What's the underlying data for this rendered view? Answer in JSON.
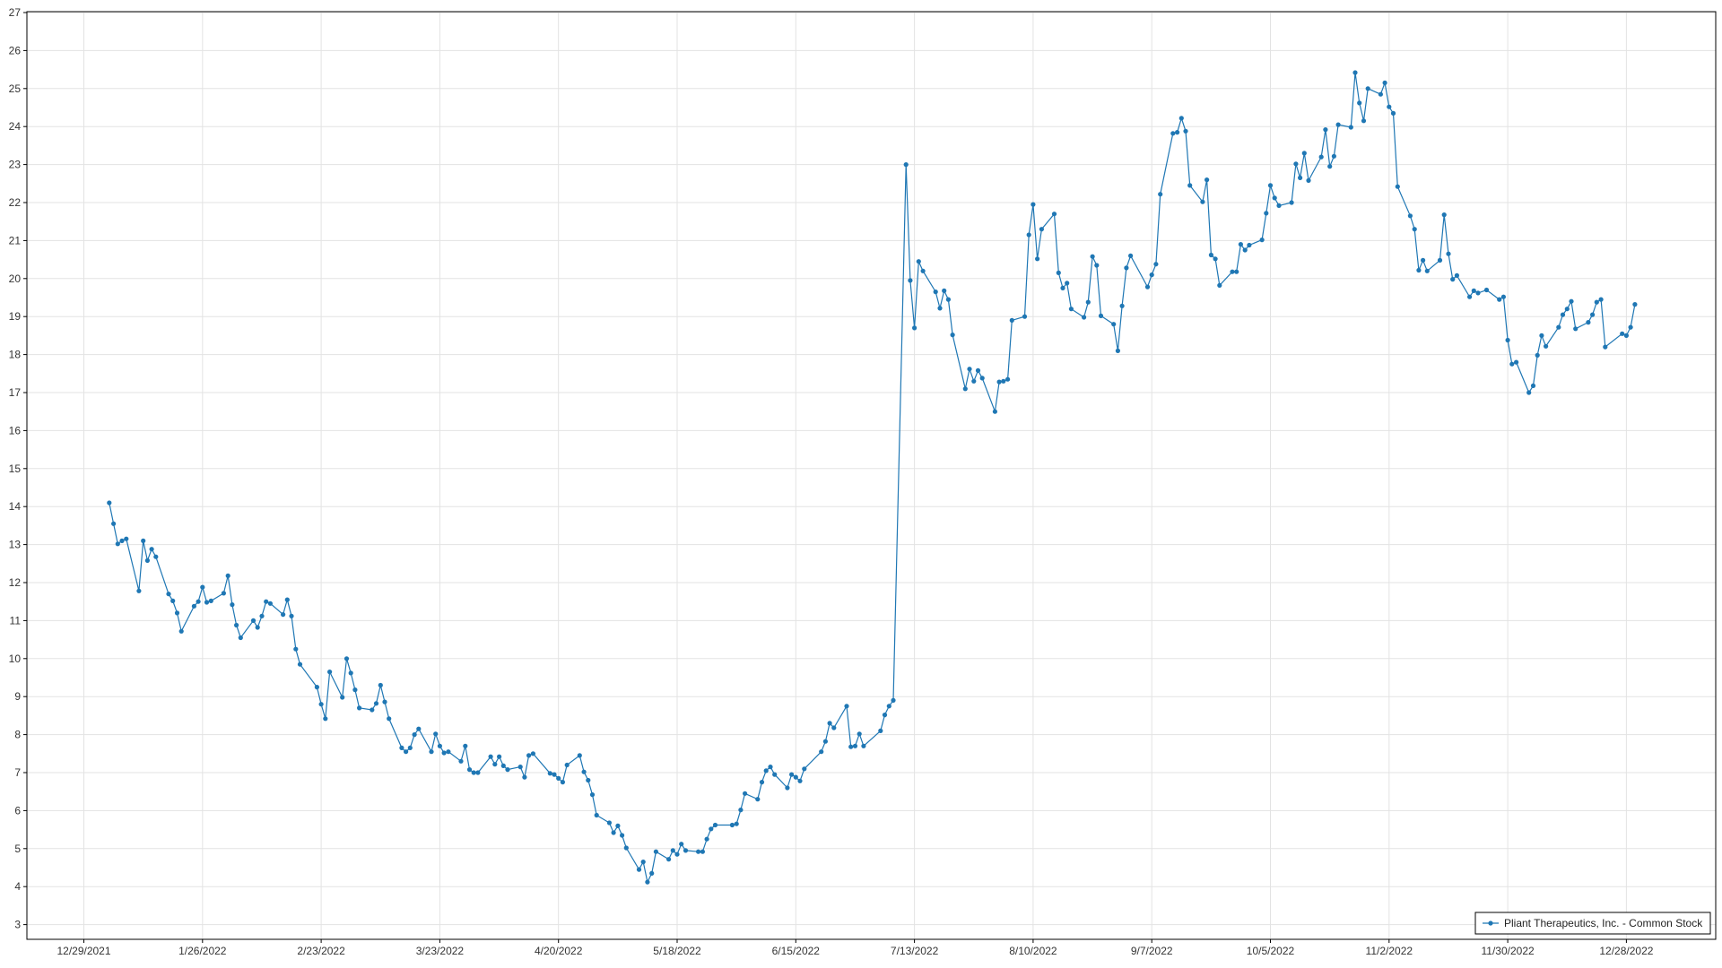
{
  "chart_data": {
    "type": "line",
    "title": "",
    "xlabel": "",
    "ylabel": "",
    "ylim": [
      3,
      27
    ],
    "xlim": [
      "2021-12-29",
      "2023-01-11"
    ],
    "yticks": [
      3,
      4,
      5,
      6,
      7,
      8,
      9,
      10,
      11,
      12,
      13,
      14,
      15,
      16,
      17,
      18,
      19,
      20,
      21,
      22,
      23,
      24,
      25,
      26,
      27
    ],
    "xticks": [
      {
        "date": "2021-12-29",
        "label": "12/29/2021"
      },
      {
        "date": "2022-01-26",
        "label": "1/26/2022"
      },
      {
        "date": "2022-02-23",
        "label": "2/23/2022"
      },
      {
        "date": "2022-03-23",
        "label": "3/23/2022"
      },
      {
        "date": "2022-04-20",
        "label": "4/20/2022"
      },
      {
        "date": "2022-05-18",
        "label": "5/18/2022"
      },
      {
        "date": "2022-06-15",
        "label": "6/15/2022"
      },
      {
        "date": "2022-07-13",
        "label": "7/13/2022"
      },
      {
        "date": "2022-08-10",
        "label": "8/10/2022"
      },
      {
        "date": "2022-09-07",
        "label": "9/7/2022"
      },
      {
        "date": "2022-10-05",
        "label": "10/5/2022"
      },
      {
        "date": "2022-11-02",
        "label": "11/2/2022"
      },
      {
        "date": "2022-11-30",
        "label": "11/30/2022"
      },
      {
        "date": "2022-12-28",
        "label": "12/28/2022"
      }
    ],
    "grid": true,
    "legend_position": "bottom-right",
    "colors": {
      "series": "#1f77b4",
      "grid": "#e3e3e3",
      "axis": "#000000"
    },
    "series": [
      {
        "name": "Pliant Therapeutics, Inc. - Common Stock",
        "points": [
          [
            "2022-01-04",
            14.1
          ],
          [
            "2022-01-05",
            13.55
          ],
          [
            "2022-01-06",
            13.02
          ],
          [
            "2022-01-07",
            13.1
          ],
          [
            "2022-01-08",
            13.15
          ],
          [
            "2022-01-11",
            11.78
          ],
          [
            "2022-01-12",
            13.1
          ],
          [
            "2022-01-13",
            12.58
          ],
          [
            "2022-01-14",
            12.88
          ],
          [
            "2022-01-15",
            12.68
          ],
          [
            "2022-01-18",
            11.7
          ],
          [
            "2022-01-19",
            11.52
          ],
          [
            "2022-01-20",
            11.2
          ],
          [
            "2022-01-21",
            10.72
          ],
          [
            "2022-01-24",
            11.38
          ],
          [
            "2022-01-25",
            11.5
          ],
          [
            "2022-01-26",
            11.88
          ],
          [
            "2022-01-27",
            11.48
          ],
          [
            "2022-01-28",
            11.52
          ],
          [
            "2022-01-31",
            11.72
          ],
          [
            "2022-02-01",
            12.18
          ],
          [
            "2022-02-02",
            11.42
          ],
          [
            "2022-02-03",
            10.88
          ],
          [
            "2022-02-04",
            10.55
          ],
          [
            "2022-02-07",
            11.0
          ],
          [
            "2022-02-08",
            10.82
          ],
          [
            "2022-02-09",
            11.12
          ],
          [
            "2022-02-10",
            11.5
          ],
          [
            "2022-02-11",
            11.45
          ],
          [
            "2022-02-14",
            11.16
          ],
          [
            "2022-02-15",
            11.55
          ],
          [
            "2022-02-16",
            11.12
          ],
          [
            "2022-02-17",
            10.25
          ],
          [
            "2022-02-18",
            9.85
          ],
          [
            "2022-02-22",
            9.25
          ],
          [
            "2022-02-23",
            8.8
          ],
          [
            "2022-02-24",
            8.42
          ],
          [
            "2022-02-25",
            9.65
          ],
          [
            "2022-02-28",
            8.98
          ],
          [
            "2022-03-01",
            10.0
          ],
          [
            "2022-03-02",
            9.62
          ],
          [
            "2022-03-03",
            9.18
          ],
          [
            "2022-03-04",
            8.7
          ],
          [
            "2022-03-07",
            8.65
          ],
          [
            "2022-03-08",
            8.82
          ],
          [
            "2022-03-09",
            9.3
          ],
          [
            "2022-03-10",
            8.86
          ],
          [
            "2022-03-11",
            8.42
          ],
          [
            "2022-03-14",
            7.65
          ],
          [
            "2022-03-15",
            7.55
          ],
          [
            "2022-03-16",
            7.65
          ],
          [
            "2022-03-17",
            8.0
          ],
          [
            "2022-03-18",
            8.15
          ],
          [
            "2022-03-21",
            7.55
          ],
          [
            "2022-03-22",
            8.02
          ],
          [
            "2022-03-23",
            7.7
          ],
          [
            "2022-03-24",
            7.52
          ],
          [
            "2022-03-25",
            7.55
          ],
          [
            "2022-03-28",
            7.3
          ],
          [
            "2022-03-29",
            7.7
          ],
          [
            "2022-03-30",
            7.08
          ],
          [
            "2022-03-31",
            7.0
          ],
          [
            "2022-04-01",
            7.0
          ],
          [
            "2022-04-04",
            7.42
          ],
          [
            "2022-04-05",
            7.22
          ],
          [
            "2022-04-06",
            7.42
          ],
          [
            "2022-04-07",
            7.18
          ],
          [
            "2022-04-08",
            7.08
          ],
          [
            "2022-04-11",
            7.15
          ],
          [
            "2022-04-12",
            6.88
          ],
          [
            "2022-04-13",
            7.45
          ],
          [
            "2022-04-14",
            7.5
          ],
          [
            "2022-04-18",
            6.98
          ],
          [
            "2022-04-19",
            6.95
          ],
          [
            "2022-04-20",
            6.85
          ],
          [
            "2022-04-21",
            6.75
          ],
          [
            "2022-04-22",
            7.2
          ],
          [
            "2022-04-25",
            7.45
          ],
          [
            "2022-04-26",
            7.02
          ],
          [
            "2022-04-27",
            6.8
          ],
          [
            "2022-04-28",
            6.42
          ],
          [
            "2022-04-29",
            5.88
          ],
          [
            "2022-05-02",
            5.68
          ],
          [
            "2022-05-03",
            5.42
          ],
          [
            "2022-05-04",
            5.6
          ],
          [
            "2022-05-05",
            5.35
          ],
          [
            "2022-05-06",
            5.02
          ],
          [
            "2022-05-09",
            4.45
          ],
          [
            "2022-05-10",
            4.65
          ],
          [
            "2022-05-11",
            4.12
          ],
          [
            "2022-05-12",
            4.35
          ],
          [
            "2022-05-13",
            4.92
          ],
          [
            "2022-05-16",
            4.72
          ],
          [
            "2022-05-17",
            4.95
          ],
          [
            "2022-05-18",
            4.85
          ],
          [
            "2022-05-19",
            5.12
          ],
          [
            "2022-05-20",
            4.95
          ],
          [
            "2022-05-23",
            4.92
          ],
          [
            "2022-05-24",
            4.92
          ],
          [
            "2022-05-25",
            5.25
          ],
          [
            "2022-05-26",
            5.52
          ],
          [
            "2022-05-27",
            5.62
          ],
          [
            "2022-05-31",
            5.62
          ],
          [
            "2022-06-01",
            5.65
          ],
          [
            "2022-06-02",
            6.02
          ],
          [
            "2022-06-03",
            6.45
          ],
          [
            "2022-06-06",
            6.3
          ],
          [
            "2022-06-07",
            6.75
          ],
          [
            "2022-06-08",
            7.05
          ],
          [
            "2022-06-09",
            7.15
          ],
          [
            "2022-06-10",
            6.95
          ],
          [
            "2022-06-13",
            6.6
          ],
          [
            "2022-06-14",
            6.95
          ],
          [
            "2022-06-15",
            6.88
          ],
          [
            "2022-06-16",
            6.78
          ],
          [
            "2022-06-17",
            7.1
          ],
          [
            "2022-06-21",
            7.55
          ],
          [
            "2022-06-22",
            7.82
          ],
          [
            "2022-06-23",
            8.3
          ],
          [
            "2022-06-24",
            8.18
          ],
          [
            "2022-06-27",
            8.75
          ],
          [
            "2022-06-28",
            7.68
          ],
          [
            "2022-06-29",
            7.7
          ],
          [
            "2022-06-30",
            8.02
          ],
          [
            "2022-07-01",
            7.7
          ],
          [
            "2022-07-05",
            8.1
          ],
          [
            "2022-07-06",
            8.52
          ],
          [
            "2022-07-07",
            8.75
          ],
          [
            "2022-07-08",
            8.9
          ],
          [
            "2022-07-11",
            23.0
          ],
          [
            "2022-07-12",
            19.95
          ],
          [
            "2022-07-13",
            18.7
          ],
          [
            "2022-07-14",
            20.45
          ],
          [
            "2022-07-15",
            20.2
          ],
          [
            "2022-07-18",
            19.65
          ],
          [
            "2022-07-19",
            19.22
          ],
          [
            "2022-07-20",
            19.68
          ],
          [
            "2022-07-21",
            19.45
          ],
          [
            "2022-07-22",
            18.52
          ],
          [
            "2022-07-25",
            17.1
          ],
          [
            "2022-07-26",
            17.62
          ],
          [
            "2022-07-27",
            17.3
          ],
          [
            "2022-07-28",
            17.58
          ],
          [
            "2022-07-29",
            17.38
          ],
          [
            "2022-08-01",
            16.5
          ],
          [
            "2022-08-02",
            17.28
          ],
          [
            "2022-08-03",
            17.3
          ],
          [
            "2022-08-04",
            17.35
          ],
          [
            "2022-08-05",
            18.9
          ],
          [
            "2022-08-08",
            19.0
          ],
          [
            "2022-08-09",
            21.15
          ],
          [
            "2022-08-10",
            21.95
          ],
          [
            "2022-08-11",
            20.52
          ],
          [
            "2022-08-12",
            21.3
          ],
          [
            "2022-08-15",
            21.7
          ],
          [
            "2022-08-16",
            20.15
          ],
          [
            "2022-08-17",
            19.75
          ],
          [
            "2022-08-18",
            19.88
          ],
          [
            "2022-08-19",
            19.2
          ],
          [
            "2022-08-22",
            18.98
          ],
          [
            "2022-08-23",
            19.38
          ],
          [
            "2022-08-24",
            20.58
          ],
          [
            "2022-08-25",
            20.35
          ],
          [
            "2022-08-26",
            19.02
          ],
          [
            "2022-08-29",
            18.8
          ],
          [
            "2022-08-30",
            18.1
          ],
          [
            "2022-08-31",
            19.28
          ],
          [
            "2022-09-01",
            20.28
          ],
          [
            "2022-09-02",
            20.6
          ],
          [
            "2022-09-06",
            19.78
          ],
          [
            "2022-09-07",
            20.1
          ],
          [
            "2022-09-08",
            20.38
          ],
          [
            "2022-09-09",
            22.22
          ],
          [
            "2022-09-12",
            23.82
          ],
          [
            "2022-09-13",
            23.85
          ],
          [
            "2022-09-14",
            24.22
          ],
          [
            "2022-09-15",
            23.88
          ],
          [
            "2022-09-16",
            22.45
          ],
          [
            "2022-09-19",
            22.02
          ],
          [
            "2022-09-20",
            22.6
          ],
          [
            "2022-09-21",
            20.62
          ],
          [
            "2022-09-22",
            20.52
          ],
          [
            "2022-09-23",
            19.82
          ],
          [
            "2022-09-26",
            20.18
          ],
          [
            "2022-09-27",
            20.18
          ],
          [
            "2022-09-28",
            20.9
          ],
          [
            "2022-09-29",
            20.75
          ],
          [
            "2022-09-30",
            20.88
          ],
          [
            "2022-10-03",
            21.02
          ],
          [
            "2022-10-04",
            21.72
          ],
          [
            "2022-10-05",
            22.45
          ],
          [
            "2022-10-06",
            22.12
          ],
          [
            "2022-10-07",
            21.92
          ],
          [
            "2022-10-10",
            22.0
          ],
          [
            "2022-10-11",
            23.02
          ],
          [
            "2022-10-12",
            22.65
          ],
          [
            "2022-10-13",
            23.3
          ],
          [
            "2022-10-14",
            22.58
          ],
          [
            "2022-10-17",
            23.2
          ],
          [
            "2022-10-18",
            23.92
          ],
          [
            "2022-10-19",
            22.95
          ],
          [
            "2022-10-20",
            23.22
          ],
          [
            "2022-10-21",
            24.05
          ],
          [
            "2022-10-24",
            23.98
          ],
          [
            "2022-10-25",
            25.42
          ],
          [
            "2022-10-26",
            24.62
          ],
          [
            "2022-10-27",
            24.15
          ],
          [
            "2022-10-28",
            25.0
          ],
          [
            "2022-10-31",
            24.85
          ],
          [
            "2022-11-01",
            25.15
          ],
          [
            "2022-11-02",
            24.52
          ],
          [
            "2022-11-03",
            24.35
          ],
          [
            "2022-11-04",
            22.42
          ],
          [
            "2022-11-07",
            21.65
          ],
          [
            "2022-11-08",
            21.3
          ],
          [
            "2022-11-09",
            20.22
          ],
          [
            "2022-11-10",
            20.48
          ],
          [
            "2022-11-11",
            20.2
          ],
          [
            "2022-11-14",
            20.48
          ],
          [
            "2022-11-15",
            21.68
          ],
          [
            "2022-11-16",
            20.65
          ],
          [
            "2022-11-17",
            19.98
          ],
          [
            "2022-11-18",
            20.08
          ],
          [
            "2022-11-21",
            19.52
          ],
          [
            "2022-11-22",
            19.68
          ],
          [
            "2022-11-23",
            19.62
          ],
          [
            "2022-11-25",
            19.7
          ],
          [
            "2022-11-28",
            19.45
          ],
          [
            "2022-11-29",
            19.52
          ],
          [
            "2022-11-30",
            18.38
          ],
          [
            "2022-12-01",
            17.75
          ],
          [
            "2022-12-02",
            17.8
          ],
          [
            "2022-12-05",
            17.0
          ],
          [
            "2022-12-06",
            17.18
          ],
          [
            "2022-12-07",
            17.98
          ],
          [
            "2022-12-08",
            18.5
          ],
          [
            "2022-12-09",
            18.22
          ],
          [
            "2022-12-12",
            18.72
          ],
          [
            "2022-12-13",
            19.05
          ],
          [
            "2022-12-14",
            19.2
          ],
          [
            "2022-12-15",
            19.4
          ],
          [
            "2022-12-16",
            18.68
          ],
          [
            "2022-12-19",
            18.85
          ],
          [
            "2022-12-20",
            19.05
          ],
          [
            "2022-12-21",
            19.38
          ],
          [
            "2022-12-22",
            19.45
          ],
          [
            "2022-12-23",
            18.2
          ],
          [
            "2022-12-27",
            18.55
          ],
          [
            "2022-12-28",
            18.5
          ],
          [
            "2022-12-29",
            18.72
          ],
          [
            "2022-12-30",
            19.32
          ]
        ]
      }
    ]
  }
}
